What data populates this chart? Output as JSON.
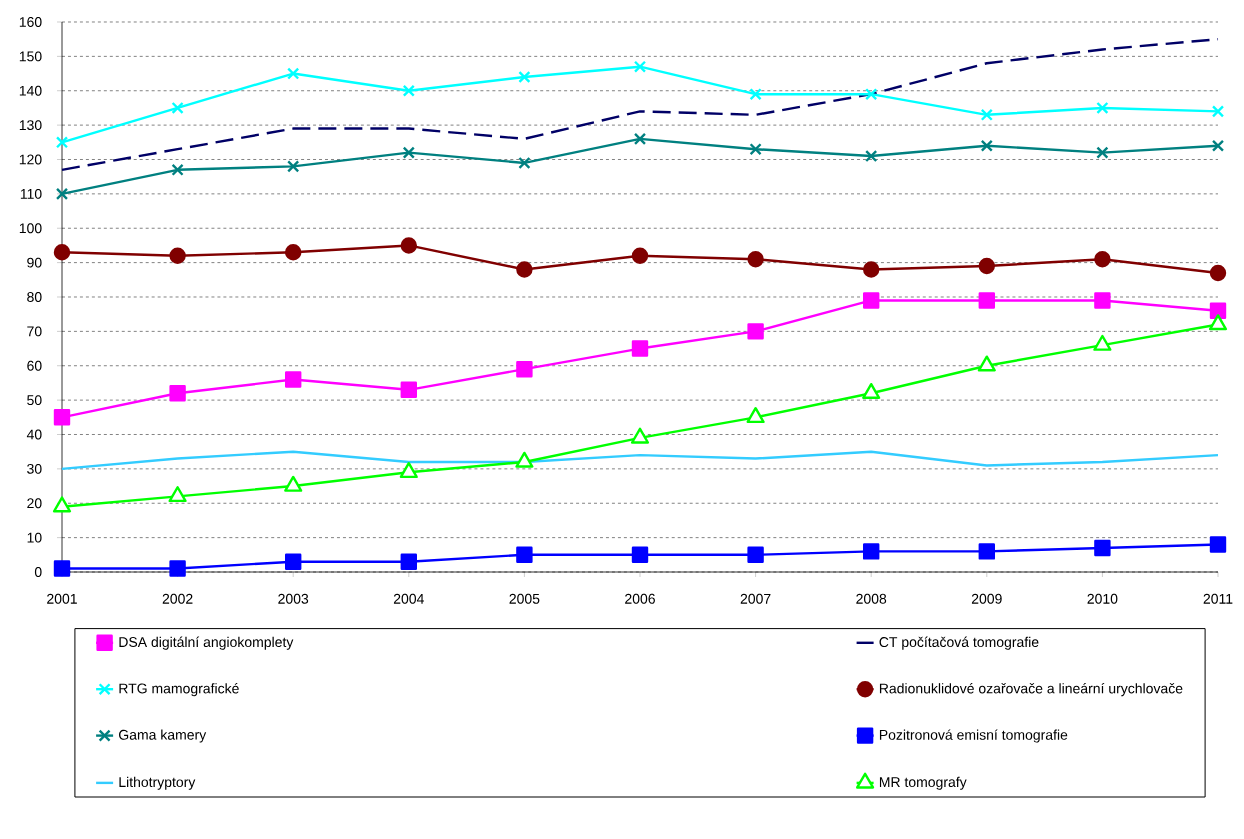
{
  "chart_data": {
    "type": "line",
    "x": [
      2001,
      2002,
      2003,
      2004,
      2005,
      2006,
      2007,
      2008,
      2009,
      2010,
      2011
    ],
    "xlim": [
      2001,
      2011
    ],
    "xticks": [
      2001,
      2002,
      2003,
      2004,
      2005,
      2006,
      2007,
      2008,
      2009,
      2010,
      2011
    ],
    "ylim": [
      0,
      160
    ],
    "yticks": [
      0,
      10,
      20,
      30,
      40,
      50,
      60,
      70,
      80,
      90,
      100,
      110,
      120,
      130,
      140,
      150,
      160
    ],
    "grid": "y",
    "legend": "bottom",
    "series": [
      {
        "name": "DSA digitální angiokomplety",
        "color": "#ff00ff",
        "marker": "square",
        "values": [
          45,
          52,
          56,
          53,
          59,
          65,
          70,
          79,
          79,
          79,
          76
        ]
      },
      {
        "name": "CT počítačová tomografie",
        "color": "#000066",
        "marker": "none",
        "line_style": "dashed",
        "values": [
          117,
          123,
          129,
          129,
          126,
          134,
          133,
          139,
          148,
          152,
          155
        ]
      },
      {
        "name": "RTG mamografické",
        "color": "#00ffff",
        "marker": "cross",
        "values": [
          125,
          135,
          145,
          140,
          144,
          147,
          139,
          139,
          133,
          135,
          134
        ]
      },
      {
        "name": "Radionuklidové ozařovače a lineární urychlovače",
        "color": "#800000",
        "marker": "circle",
        "values": [
          93,
          92,
          93,
          95,
          88,
          92,
          91,
          88,
          89,
          91,
          87
        ]
      },
      {
        "name": "Gama kamery",
        "color": "#008080",
        "marker": "cross",
        "values": [
          110,
          117,
          118,
          122,
          119,
          126,
          123,
          121,
          124,
          122,
          124
        ]
      },
      {
        "name": "Pozitronová emisní tomografie",
        "color": "#0000ff",
        "marker": "square",
        "values": [
          1,
          1,
          3,
          3,
          5,
          5,
          5,
          6,
          6,
          7,
          8
        ]
      },
      {
        "name": "Lithotryptory",
        "color": "#33ccff",
        "marker": "none",
        "values": [
          30,
          33,
          35,
          32,
          32,
          34,
          33,
          35,
          31,
          32,
          34
        ]
      },
      {
        "name": "MR tomografy",
        "color": "#00ff00",
        "marker": "triangle",
        "values": [
          19,
          22,
          25,
          29,
          32,
          39,
          45,
          52,
          60,
          66,
          72
        ]
      }
    ]
  }
}
